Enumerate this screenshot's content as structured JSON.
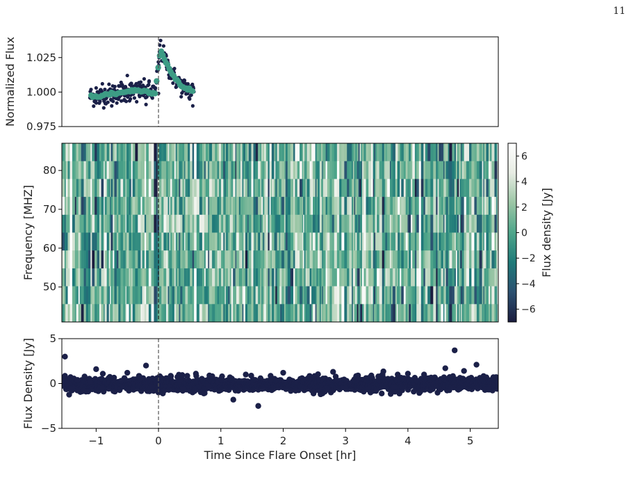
{
  "page_number": "11",
  "chart_data": [
    {
      "type": "scatter",
      "ylabel": "Normalized Flux",
      "xlim": [
        -1.55,
        5.45
      ],
      "ylim": [
        0.975,
        1.04
      ],
      "yticks": [
        0.975,
        1.0,
        1.025
      ],
      "ytick_labels": [
        "0.975",
        "1.000",
        "1.025"
      ],
      "vline_x": 0,
      "series": [
        {
          "color": "#1b2048",
          "role": "raw",
          "x": [
            -1.05,
            -1.0,
            -0.95,
            -0.9,
            -0.85,
            -0.8,
            -0.75,
            -0.7,
            -0.65,
            -0.6,
            -0.55,
            -0.5,
            -0.45,
            -0.4,
            -0.35,
            -0.3,
            -0.25,
            -0.2,
            -0.15,
            -0.1,
            -0.05,
            0.0,
            0.02,
            0.05,
            0.1,
            0.15,
            0.2,
            0.25,
            0.3,
            0.35,
            0.4,
            0.45,
            0.5,
            0.55
          ],
          "y": [
            0.996,
            1.003,
            0.992,
            1.006,
            0.995,
            1.001,
            0.99,
            1.004,
            0.997,
            1.007,
            0.994,
            1.012,
            0.995,
            1.003,
            0.993,
            1.005,
            0.998,
            0.991,
            1.008,
            0.996,
            1.003,
            0.999,
            1.034,
            1.03,
            1.024,
            1.02,
            1.016,
            1.01,
            1.006,
            1.004,
            1.001,
            0.999,
            0.995,
            0.99
          ]
        },
        {
          "color": "#3d9c85",
          "role": "binned",
          "x": [
            -1.05,
            -0.95,
            -0.85,
            -0.75,
            -0.65,
            -0.55,
            -0.45,
            -0.35,
            -0.25,
            -0.15,
            -0.05,
            0.03,
            0.08,
            0.13,
            0.18,
            0.23,
            0.28,
            0.33,
            0.38,
            0.43,
            0.48,
            0.53
          ],
          "y": [
            0.997,
            0.997,
            0.998,
            0.999,
            0.999,
            1.0,
            1.001,
            1.001,
            1.001,
            1.0,
            1.0,
            1.031,
            1.026,
            1.021,
            1.016,
            1.012,
            1.009,
            1.006,
            1.004,
            1.003,
            1.002,
            1.001
          ]
        }
      ]
    },
    {
      "type": "heatmap",
      "ylabel": "Frequency [MHZ]",
      "xlim": [
        -1.55,
        5.45
      ],
      "ylim": [
        41,
        87
      ],
      "yticks": [
        50,
        60,
        70,
        80
      ],
      "ytick_labels": [
        "50",
        "60",
        "70",
        "80"
      ],
      "n_channels": 10,
      "colorbar": {
        "label": "Flux density [Jy]",
        "range": [
          -7,
          7
        ],
        "ticks": [
          -6,
          -4,
          -2,
          0,
          2,
          4,
          6
        ],
        "tick_labels": [
          "−6",
          "−4",
          "−2",
          "0",
          "2",
          "4",
          "6"
        ],
        "colors": [
          "#1b1d3f",
          "#2c5171",
          "#1f7a79",
          "#4ea58a",
          "#9bc6a5",
          "#e7ece3",
          "#ffffff"
        ]
      },
      "vline_x": 0
    },
    {
      "type": "scatter",
      "ylabel": "Flux Density [Jy]",
      "xlabel": "Time Since Flare Onset [hr]",
      "xlim": [
        -1.55,
        5.45
      ],
      "ylim": [
        -5,
        5
      ],
      "xticks": [
        -1,
        0,
        1,
        2,
        3,
        4,
        5
      ],
      "xtick_labels": [
        "−1",
        "0",
        "1",
        "2",
        "3",
        "4",
        "5"
      ],
      "yticks": [
        -5,
        0,
        5
      ],
      "ytick_labels": [
        "−5",
        "0",
        "5"
      ],
      "vline_x": 0,
      "series": [
        {
          "color": "#1b2048",
          "x": [
            -1.5,
            -1.4,
            -1.3,
            -1.2,
            -1.1,
            -1.0,
            -0.9,
            -0.8,
            -0.7,
            -0.6,
            -0.5,
            -0.4,
            -0.3,
            -0.2,
            -0.1,
            0.0,
            0.2,
            0.4,
            0.6,
            0.8,
            1.0,
            1.2,
            1.4,
            1.6,
            1.8,
            2.0,
            2.2,
            2.4,
            2.6,
            2.8,
            3.0,
            3.2,
            3.4,
            3.6,
            3.8,
            4.0,
            4.2,
            4.4,
            4.6,
            4.75,
            4.9,
            5.1,
            5.3
          ],
          "y": [
            3.0,
            -0.6,
            0.4,
            -0.8,
            0.2,
            1.6,
            -0.5,
            0.6,
            -0.9,
            0.3,
            1.2,
            -0.7,
            0.5,
            2.0,
            -0.4,
            -1.0,
            0.8,
            -0.6,
            1.1,
            -0.3,
            0.5,
            -1.8,
            1.0,
            -2.5,
            0.4,
            1.2,
            -0.8,
            0.6,
            -1.2,
            1.3,
            -0.5,
            0.9,
            -1.0,
            0.7,
            -0.4,
            1.1,
            -0.9,
            0.6,
            1.7,
            3.7,
            1.4,
            2.1,
            -0.6
          ]
        }
      ]
    }
  ]
}
